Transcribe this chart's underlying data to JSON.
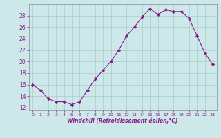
{
  "x": [
    0,
    1,
    2,
    3,
    4,
    5,
    6,
    7,
    8,
    9,
    10,
    11,
    12,
    13,
    14,
    15,
    16,
    17,
    18,
    19,
    20,
    21,
    22,
    23
  ],
  "y": [
    16,
    15,
    13.5,
    13,
    13,
    12.5,
    13,
    15,
    17,
    18.5,
    20,
    22,
    24.5,
    26,
    27.8,
    29.2,
    28.2,
    29,
    28.7,
    28.7,
    27.5,
    24.5,
    21.5,
    19.5
  ],
  "line_color": "#8b1a8b",
  "marker": "D",
  "marker_size": 2.2,
  "bg_color": "#cce8e8",
  "grid_color": "#aacccc",
  "xlabel": "Windchill (Refroidissement éolien,°C)",
  "xlabel_color": "#8b1a8b",
  "tick_color": "#8b1a8b",
  "ylim": [
    11.5,
    30.0
  ],
  "yticks": [
    12,
    14,
    16,
    18,
    20,
    22,
    24,
    26,
    28
  ],
  "xlim": [
    -0.5,
    23.5
  ],
  "xticks": [
    0,
    1,
    2,
    3,
    4,
    5,
    6,
    7,
    8,
    9,
    10,
    11,
    12,
    13,
    14,
    15,
    16,
    17,
    18,
    19,
    20,
    21,
    22,
    23
  ]
}
